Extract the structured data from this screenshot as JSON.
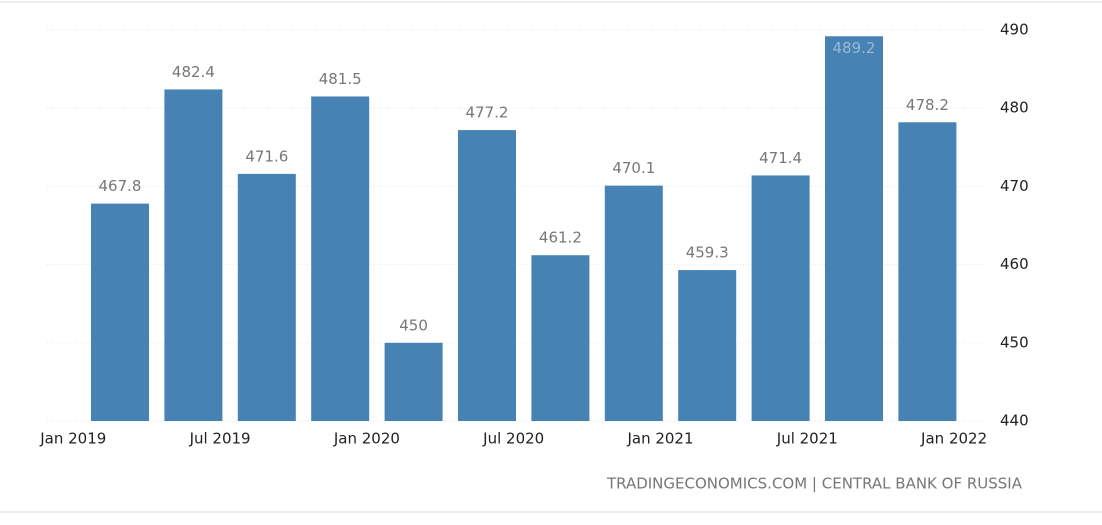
{
  "chart_data": {
    "type": "bar",
    "categories": [
      null,
      null,
      null,
      null,
      null,
      null,
      null,
      null,
      null,
      null,
      null,
      null
    ],
    "values": [
      467.8,
      482.4,
      471.6,
      481.5,
      450,
      477.2,
      461.2,
      470.1,
      459.3,
      471.4,
      489.2,
      478.2
    ],
    "color": "#4682b4",
    "xtick_labels": [
      "Jan 2019",
      "Jul 2019",
      "Jan 2020",
      "Jul 2020",
      "Jan 2021",
      "Jul 2021",
      "Jan 2022"
    ],
    "ylim": [
      440,
      490
    ],
    "yticks": [
      440,
      450,
      460,
      470,
      480,
      490
    ],
    "grid": true,
    "source": "TRADINGECONOMICS.COM | CENTRAL BANK OF RUSSIA"
  }
}
